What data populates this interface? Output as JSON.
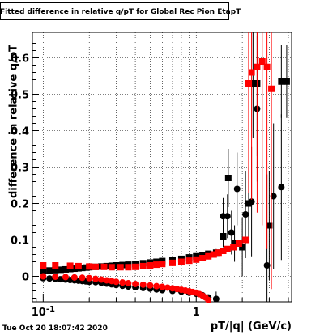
{
  "chart_data": {
    "type": "scatter",
    "title": "Fitted difference in relative q/pT  for Global Rec Pion EtapT",
    "xlabel": "pT/|q| (GeV/c)",
    "ylabel": "difference in relative q/pT",
    "x_scale": "log",
    "xlim": [
      0.085,
      4.2
    ],
    "ylim": [
      -0.07,
      0.67
    ],
    "grid": true,
    "y_ticks": [
      0,
      0.1,
      0.2,
      0.3,
      0.4,
      0.5,
      0.6
    ],
    "y_tick_labels": [
      "0",
      "0.1",
      "0.2",
      "0.3",
      "0.4",
      "0.5",
      "0.6"
    ],
    "x_tick_labels": [
      {
        "v": 0.1,
        "label": "10-1"
      },
      {
        "v": 1,
        "label": "1"
      }
    ],
    "series": [
      {
        "color": "#000000",
        "marker": "circle",
        "x": [
          0.1,
          0.11,
          0.12,
          0.13,
          0.14,
          0.15,
          0.16,
          0.17,
          0.18,
          0.19,
          0.2,
          0.22,
          0.24,
          0.26,
          0.28,
          0.3,
          0.33,
          0.36,
          0.4,
          0.45,
          0.5,
          0.55,
          0.6,
          0.7,
          0.8,
          0.9,
          1.0,
          1.1,
          1.2,
          1.35,
          1.5,
          1.6,
          1.7,
          1.85,
          2.1,
          2.3,
          2.5,
          2.9,
          3.2,
          3.6
        ],
        "y": [
          -0.005,
          -0.006,
          -0.007,
          -0.008,
          -0.009,
          -0.01,
          -0.011,
          -0.012,
          -0.013,
          -0.014,
          -0.015,
          -0.016,
          -0.018,
          -0.02,
          -0.022,
          -0.024,
          -0.026,
          -0.028,
          -0.03,
          -0.032,
          -0.034,
          -0.036,
          -0.038,
          -0.04,
          -0.042,
          -0.045,
          -0.048,
          -0.052,
          -0.058,
          -0.062,
          0.165,
          0.165,
          0.12,
          0.24,
          0.17,
          0.205,
          0.46,
          0.03,
          0.22,
          0.245
        ],
        "err": [
          0,
          0,
          0,
          0,
          0,
          0,
          0,
          0,
          0,
          0,
          0,
          0,
          0,
          0,
          0,
          0,
          0,
          0,
          0,
          0,
          0,
          0,
          0,
          0,
          0,
          0,
          0,
          0,
          0,
          0.02,
          0.05,
          0.06,
          0.06,
          0.1,
          0.12,
          0.15,
          0.2,
          0.25,
          0.2,
          0.2
        ]
      },
      {
        "color": "#000000",
        "marker": "square",
        "x": [
          0.1,
          0.11,
          0.12,
          0.13,
          0.14,
          0.15,
          0.16,
          0.17,
          0.18,
          0.19,
          0.2,
          0.22,
          0.24,
          0.26,
          0.28,
          0.3,
          0.33,
          0.36,
          0.4,
          0.45,
          0.5,
          0.55,
          0.6,
          0.7,
          0.8,
          0.9,
          1.0,
          1.1,
          1.2,
          1.35,
          1.5,
          1.62,
          1.78,
          2.0,
          2.2,
          2.35,
          2.5,
          3.0,
          3.6,
          3.9
        ],
        "y": [
          0.015,
          0.016,
          0.017,
          0.018,
          0.019,
          0.02,
          0.021,
          0.022,
          0.023,
          0.024,
          0.025,
          0.026,
          0.027,
          0.028,
          0.029,
          0.03,
          0.031,
          0.032,
          0.034,
          0.036,
          0.038,
          0.04,
          0.042,
          0.045,
          0.048,
          0.052,
          0.055,
          0.058,
          0.062,
          0.065,
          0.11,
          0.27,
          0.09,
          0.08,
          0.2,
          0.53,
          0.53,
          0.14,
          0.535,
          0.535
        ],
        "err": [
          0,
          0,
          0,
          0,
          0,
          0,
          0,
          0,
          0,
          0,
          0,
          0,
          0,
          0,
          0,
          0,
          0,
          0,
          0,
          0,
          0,
          0,
          0,
          0,
          0,
          0,
          0,
          0,
          0,
          0.01,
          0.03,
          0.08,
          0.05,
          0.08,
          0.1,
          0.15,
          0.2,
          0.15,
          0.1,
          0.1
        ]
      },
      {
        "color": "#ff0000",
        "marker": "circle",
        "x": [
          0.1,
          0.12,
          0.14,
          0.16,
          0.18,
          0.2,
          0.22,
          0.24,
          0.26,
          0.28,
          0.3,
          0.33,
          0.36,
          0.4,
          0.45,
          0.5,
          0.55,
          0.6,
          0.65,
          0.7,
          0.75,
          0.8,
          0.85,
          0.9,
          0.95,
          1.0,
          1.05,
          1.1,
          1.15,
          1.2
        ],
        "y": [
          0.0,
          -0.001,
          -0.002,
          -0.003,
          -0.004,
          -0.005,
          -0.007,
          -0.009,
          -0.011,
          -0.013,
          -0.015,
          -0.017,
          -0.019,
          -0.021,
          -0.023,
          -0.025,
          -0.027,
          -0.029,
          -0.031,
          -0.033,
          -0.035,
          -0.037,
          -0.039,
          -0.041,
          -0.043,
          -0.045,
          -0.049,
          -0.053,
          -0.058,
          -0.065
        ]
      },
      {
        "color": "#ff0000",
        "marker": "square",
        "x": [
          0.1,
          0.12,
          0.15,
          0.17,
          0.2,
          0.22,
          0.25,
          0.28,
          0.32,
          0.36,
          0.4,
          0.45,
          0.5,
          0.55,
          0.6,
          0.7,
          0.8,
          0.9,
          1.0,
          1.1,
          1.2,
          1.3,
          1.4,
          1.5,
          1.6,
          1.75,
          1.9,
          2.1,
          2.2,
          2.3,
          2.5,
          2.7,
          2.9,
          3.1
        ],
        "y": [
          0.03,
          0.03,
          0.029,
          0.028,
          0.027,
          0.026,
          0.026,
          0.025,
          0.025,
          0.025,
          0.026,
          0.028,
          0.03,
          0.032,
          0.034,
          0.037,
          0.04,
          0.043,
          0.046,
          0.05,
          0.055,
          0.06,
          0.065,
          0.07,
          0.075,
          0.08,
          0.09,
          0.1,
          0.53,
          0.56,
          0.575,
          0.59,
          0.575,
          0.515
        ],
        "err": [
          0,
          0,
          0,
          0,
          0,
          0,
          0,
          0,
          0,
          0,
          0,
          0,
          0,
          0,
          0,
          0,
          0,
          0,
          0,
          0,
          0,
          0,
          0,
          0,
          0,
          0,
          0,
          0,
          0.3,
          0.35,
          0.4,
          0.45,
          0.5,
          0.55
        ]
      }
    ]
  },
  "footer": {
    "timestamp": "Tue Oct 20 18:07:42 2020"
  }
}
